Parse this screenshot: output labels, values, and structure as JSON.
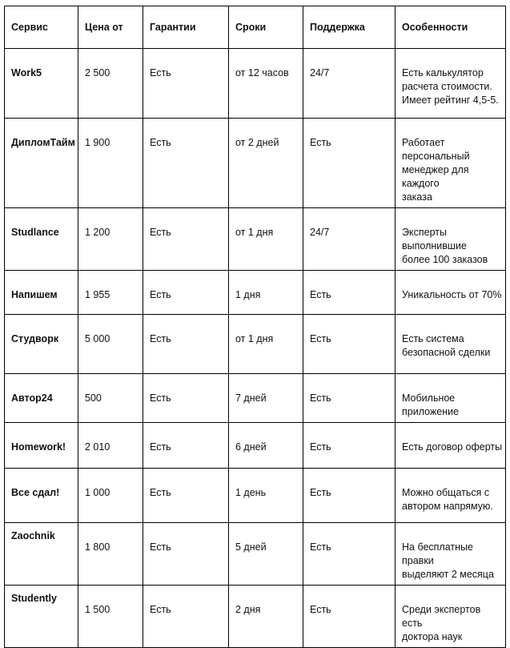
{
  "table": {
    "headers": [
      "Сервис",
      "Цена от",
      "Гарантии",
      "Сроки",
      "Поддержка",
      "Особенности"
    ],
    "rows": [
      {
        "service": "Work5",
        "price": "2 500",
        "guarantee": "Есть",
        "terms": "от 12 часов",
        "support": "24/7",
        "features": "Есть калькулятор\nрасчета стоимости.\nИмеет рейтинг 4,5-5."
      },
      {
        "service": "ДипломТайм",
        "price": "1 900",
        "guarantee": "Есть",
        "terms": "от 2 дней",
        "support": "Есть",
        "features": "Работает персональный\nменеджер для каждого\nзаказа"
      },
      {
        "service": "Studlance",
        "price": "1 200",
        "guarantee": "Есть",
        "terms": "от 1 дня",
        "support": "24/7",
        "features": "Эксперты выполнившие\nболее 100 заказов"
      },
      {
        "service": "Напишем",
        "price": "1 955",
        "guarantee": "Есть",
        "terms": "1 дня",
        "support": "Есть",
        "features": "Уникальность от 70%"
      },
      {
        "service": "Студворк",
        "price": "5 000",
        "guarantee": "Есть",
        "terms": "от 1 дня",
        "support": "Есть",
        "features": "Есть система\nбезопасной сделки"
      },
      {
        "service": "Автор24",
        "price": "500",
        "guarantee": "Есть",
        "terms": "7 дней",
        "support": "Есть",
        "features": "Мобильное приложение"
      },
      {
        "service": "Homework!",
        "price": "2 010",
        "guarantee": "Есть",
        "terms": "6 дней",
        "support": "Есть",
        "features": "Есть договор оферты"
      },
      {
        "service": "Все сдал!",
        "price": "1 000",
        "guarantee": "Есть",
        "terms": "1 день",
        "support": "Есть",
        "features": "Можно общаться с\nавтором напрямую."
      },
      {
        "service": "Zaochnik",
        "price": "1 800",
        "guarantee": "Есть",
        "terms": "5 дней",
        "support": "Есть",
        "features": "На бесплатные правки\nвыделяют 2 месяца"
      },
      {
        "service": "Studently",
        "price": "1 500",
        "guarantee": "Есть",
        "terms": "2 дня",
        "support": "Есть",
        "features": "Среди экспертов есть\nдоктора наук"
      }
    ]
  }
}
